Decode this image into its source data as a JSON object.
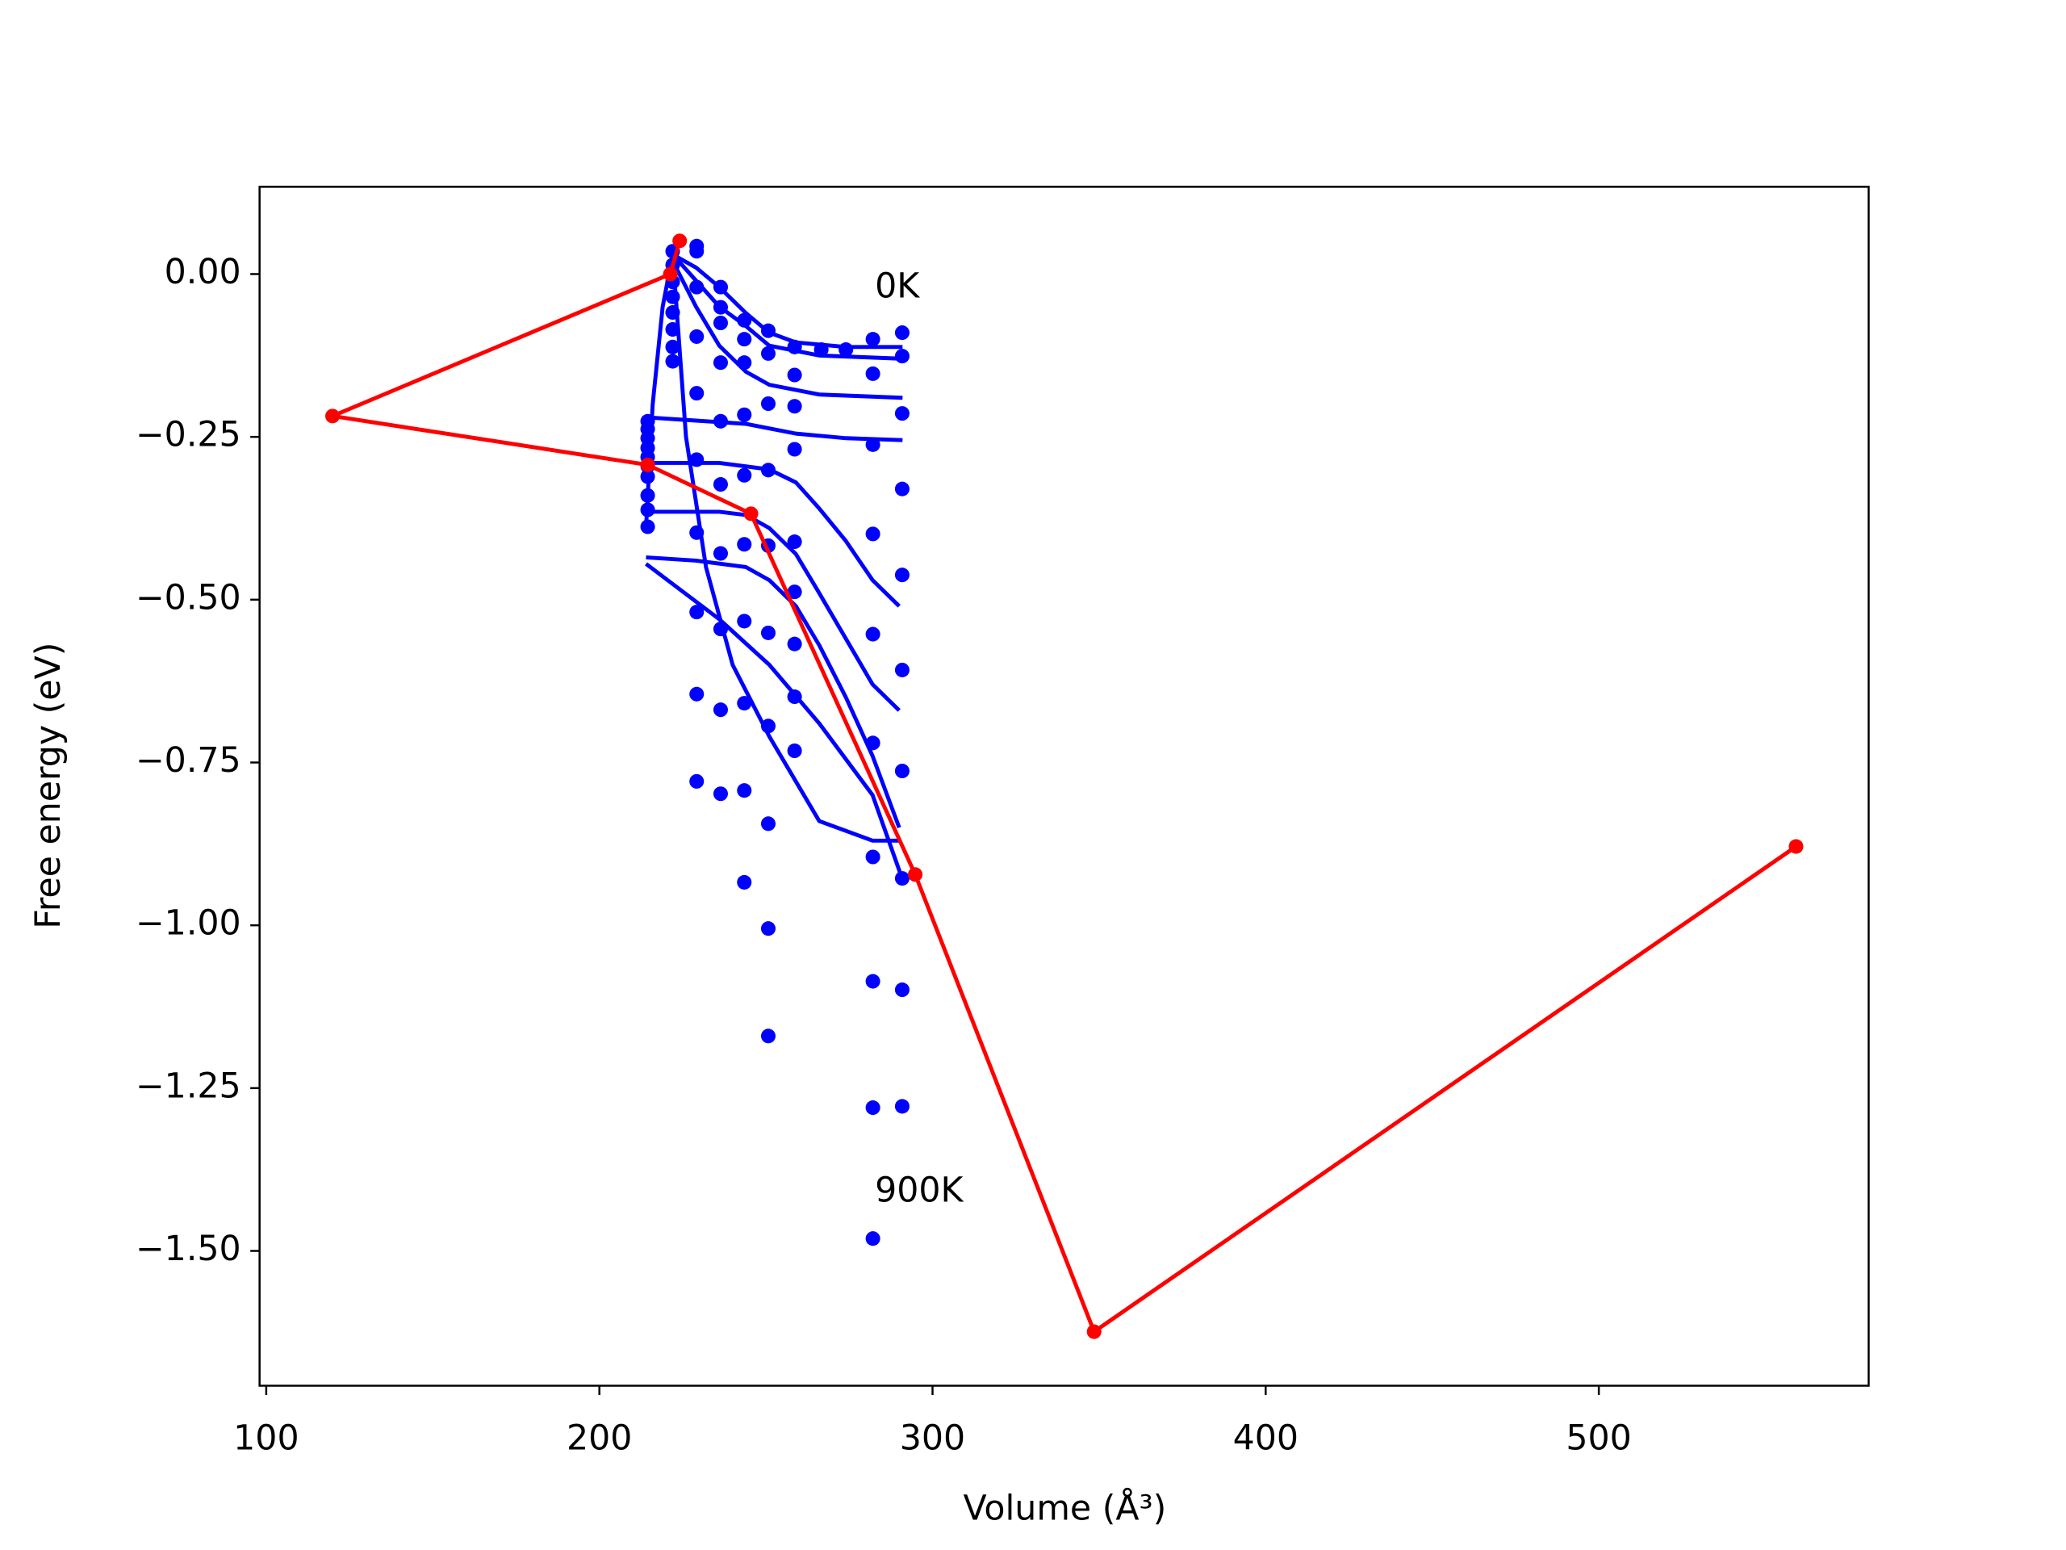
{
  "chart_data": {
    "type": "line",
    "xlabel": "Volume (Å³)",
    "ylabel": "Free energy (eV)",
    "xlim": [
      98,
      581
    ],
    "ylim": [
      -1.707,
      0.134
    ],
    "xticks": [
      100,
      200,
      300,
      400,
      500
    ],
    "yticks": [
      {
        "value": 0,
        "label": "0.00"
      },
      {
        "value": -0.25,
        "label": "−0.25"
      },
      {
        "value": -0.5,
        "label": "−0.50"
      },
      {
        "value": -0.75,
        "label": "−0.75"
      },
      {
        "value": -1.0,
        "label": "−1.00"
      },
      {
        "value": -1.25,
        "label": "−1.25"
      },
      {
        "value": -1.5,
        "label": "−1.50"
      }
    ],
    "grid": false,
    "annotations": [
      {
        "text": "0K",
        "x": 282.7,
        "y": -0.022
      },
      {
        "text": "900K",
        "x": 282.7,
        "y": -1.41
      }
    ],
    "series": [
      {
        "kind": "scatter",
        "color": "#0000ff",
        "x": [
          214.5,
          214.5,
          214.5,
          214.5,
          214.5,
          214.5,
          214.5,
          214.5,
          214.5,
          214.5,
          222,
          222,
          222,
          222,
          222,
          222,
          222,
          222,
          229.2,
          229.2,
          229.2,
          229.2,
          229.2,
          229.2,
          229.2,
          229.2,
          229.2,
          229.2,
          236.4,
          236.4,
          236.4,
          236.4,
          236.4,
          236.4,
          236.4,
          236.4,
          236.4,
          236.4,
          243.5,
          243.5,
          243.5,
          243.5,
          243.5,
          243.5,
          243.5,
          243.5,
          243.5,
          243.5,
          250.7,
          250.7,
          250.7,
          250.7,
          250.7,
          250.7,
          250.7,
          250.7,
          250.7,
          250.7,
          258.6,
          258.6,
          258.6,
          258.6,
          258.6,
          258.6,
          258.6,
          258.6,
          258.6,
          266.6,
          274,
          282.1,
          282.1,
          282.1,
          282.1,
          282.1,
          282.1,
          282.1,
          282.1,
          282.1,
          282.1,
          290.9,
          290.9,
          290.9,
          290.9,
          290.9,
          290.9,
          290.9,
          290.9,
          290.9,
          290.9
        ],
        "values": [
          -0.226,
          -0.238,
          -0.252,
          -0.267,
          -0.281,
          -0.295,
          -0.311,
          -0.34,
          -0.362,
          -0.388,
          0.035,
          0.014,
          -0.012,
          -0.035,
          -0.059,
          -0.085,
          -0.112,
          -0.134,
          0.043,
          0.035,
          -0.02,
          -0.096,
          -0.183,
          -0.285,
          -0.397,
          -0.519,
          -0.645,
          -0.779,
          -0.02,
          -0.051,
          -0.075,
          -0.136,
          -0.226,
          -0.323,
          -0.429,
          -0.545,
          -0.669,
          -0.798,
          -0.071,
          -0.1,
          -0.136,
          -0.216,
          -0.309,
          -0.415,
          -0.533,
          -0.659,
          -0.793,
          -0.934,
          -0.087,
          -0.122,
          -0.199,
          -0.301,
          -0.417,
          -0.551,
          -0.694,
          -0.844,
          -1.005,
          -1.17,
          -0.112,
          -0.155,
          -0.203,
          -0.269,
          -0.411,
          -0.488,
          -0.568,
          -0.649,
          -0.732,
          -0.116,
          -0.116,
          -0.1,
          -0.153,
          -0.262,
          -0.399,
          -0.553,
          -0.72,
          -0.895,
          -1.086,
          -1.28,
          -1.481,
          -0.09,
          -0.126,
          -0.214,
          -0.33,
          -0.462,
          -0.608,
          -0.763,
          -0.928,
          -1.099,
          -1.278
        ]
      },
      {
        "kind": "line",
        "color": "#0000ff",
        "x": [
          222,
          229,
          236,
          244,
          251,
          259,
          274,
          291
        ],
        "values": [
          0.03,
          0.01,
          -0.02,
          -0.06,
          -0.09,
          -0.105,
          -0.112,
          -0.112
        ]
      },
      {
        "kind": "line",
        "color": "#0000ff",
        "x": [
          222,
          229,
          236,
          244,
          251,
          266,
          291
        ],
        "values": [
          0.03,
          -0.01,
          -0.05,
          -0.08,
          -0.11,
          -0.125,
          -0.13
        ]
      },
      {
        "kind": "line",
        "color": "#0000ff",
        "x": [
          222,
          229,
          236,
          244,
          251,
          266,
          291
        ],
        "values": [
          0.02,
          -0.05,
          -0.11,
          -0.15,
          -0.17,
          -0.185,
          -0.19
        ]
      },
      {
        "kind": "line",
        "color": "#0000ff",
        "x": [
          214,
          229,
          244,
          259,
          274,
          291
        ],
        "values": [
          -0.22,
          -0.225,
          -0.23,
          -0.245,
          -0.252,
          -0.255
        ]
      },
      {
        "kind": "line",
        "color": "#0000ff",
        "x": [
          214,
          236,
          251,
          259,
          266,
          274,
          282,
          290
        ],
        "values": [
          -0.29,
          -0.29,
          -0.3,
          -0.32,
          -0.36,
          -0.41,
          -0.47,
          -0.51
        ]
      },
      {
        "kind": "line",
        "color": "#0000ff",
        "x": [
          214,
          236,
          244,
          251,
          259,
          266,
          274,
          282,
          290
        ],
        "values": [
          -0.365,
          -0.365,
          -0.37,
          -0.39,
          -0.43,
          -0.49,
          -0.56,
          -0.63,
          -0.67
        ]
      },
      {
        "kind": "line",
        "color": "#0000ff",
        "x": [
          214,
          229,
          244,
          251,
          259,
          266,
          274,
          282,
          290
        ],
        "values": [
          -0.435,
          -0.44,
          -0.45,
          -0.47,
          -0.51,
          -0.57,
          -0.65,
          -0.74,
          -0.85
        ]
      },
      {
        "kind": "line",
        "color": "#0000ff",
        "x": [
          214,
          236,
          251,
          266,
          282,
          291
        ],
        "values": [
          -0.445,
          -0.53,
          -0.6,
          -0.69,
          -0.8,
          -0.93
        ]
      },
      {
        "kind": "line",
        "color": "#0000ff",
        "x": [
          222,
          226,
          232,
          240,
          251,
          266,
          282,
          290
        ],
        "values": [
          0.03,
          -0.25,
          -0.45,
          -0.6,
          -0.71,
          -0.84,
          -0.87,
          -0.87
        ]
      },
      {
        "kind": "line",
        "color": "#0000ff",
        "x": [
          214,
          216,
          219,
          222
        ],
        "values": [
          -0.39,
          -0.2,
          -0.05,
          0.03
        ]
      },
      {
        "kind": "line",
        "color": "#ff0000",
        "markers": true,
        "x": [
          224.1,
          221.3,
          119.9,
          214.5,
          245.5,
          294.8,
          348.5,
          559.2
        ],
        "values": [
          0.051,
          0.0,
          -0.218,
          -0.293,
          -0.368,
          -0.922,
          -1.624,
          -0.879
        ]
      }
    ]
  }
}
